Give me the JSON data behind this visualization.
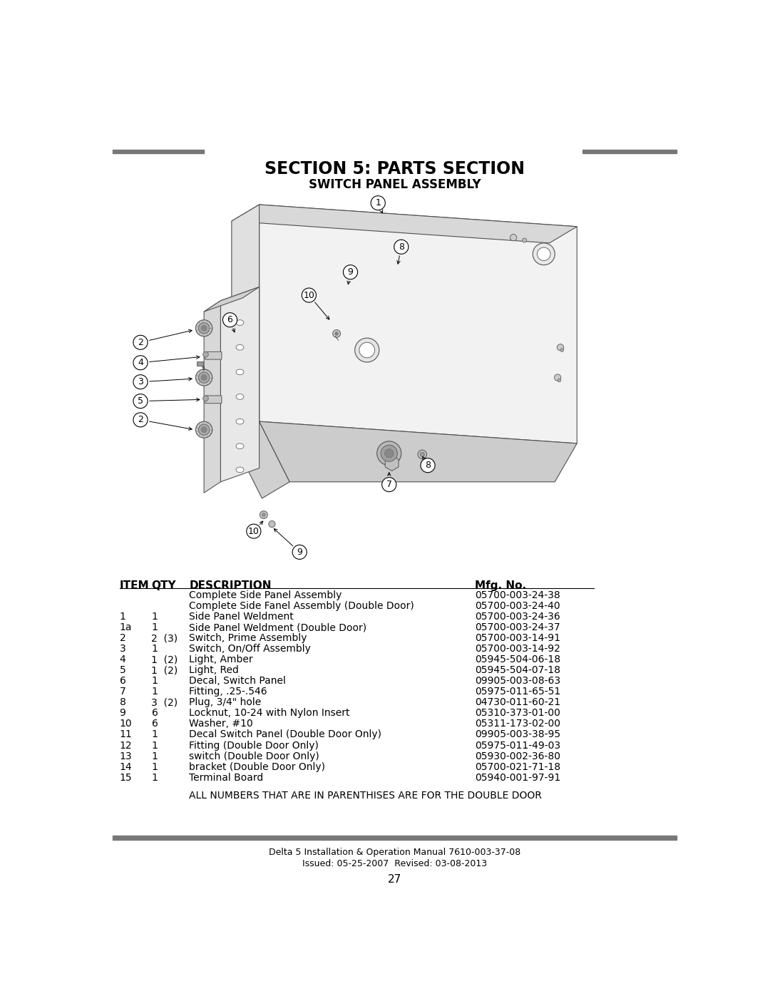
{
  "title1": "SECTION 5: PARTS SECTION",
  "title2": "SWITCH PANEL ASSEMBLY",
  "bg_color": "#ffffff",
  "header_bar_color": "#777777",
  "footer_bar_color": "#777777",
  "table_headers": [
    "ITEM",
    "QTY",
    "DESCRIPTION",
    "Mfg. No."
  ],
  "table_rows": [
    [
      "",
      "",
      "Complete Side Panel Assembly",
      "05700-003-24-38"
    ],
    [
      "",
      "",
      "Complete Side Fanel Assembly (Double Door)",
      "05700-003-24-40"
    ],
    [
      "1",
      "1",
      "Side Panel Weldment",
      "05700-003-24-36"
    ],
    [
      "1a",
      "1",
      "Side Panel Weldment (Double Door)",
      "05700-003-24-37"
    ],
    [
      "2",
      "2  (3)",
      "Switch, Prime Assembly",
      "05700-003-14-91"
    ],
    [
      "3",
      "1",
      "Switch, On/Off Assembly",
      "05700-003-14-92"
    ],
    [
      "4",
      "1  (2)",
      "Light, Amber",
      "05945-504-06-18"
    ],
    [
      "5",
      "1  (2)",
      "Light, Red",
      "05945-504-07-18"
    ],
    [
      "6",
      "1",
      "Decal, Switch Panel",
      "09905-003-08-63"
    ],
    [
      "7",
      "1",
      "Fitting, .25-.546",
      "05975-011-65-51"
    ],
    [
      "8",
      "3  (2)",
      "Plug, 3/4\" hole",
      "04730-011-60-21"
    ],
    [
      "9",
      "6",
      "Locknut, 10-24 with Nylon Insert",
      "05310-373-01-00"
    ],
    [
      "10",
      "6",
      "Washer, #10",
      "05311-173-02-00"
    ],
    [
      "11",
      "1",
      "Decal Switch Panel (Double Door Only)",
      "09905-003-38-95"
    ],
    [
      "12",
      "1",
      "Fitting (Double Door Only)",
      "05975-011-49-03"
    ],
    [
      "13",
      "1",
      "switch (Double Door Only)",
      "05930-002-36-80"
    ],
    [
      "14",
      "1",
      "bracket (Double Door Only)",
      "05700-021-71-18"
    ],
    [
      "15",
      "1",
      "Terminal Board",
      "05940-001-97-91"
    ]
  ],
  "note": "ALL NUMBERS THAT ARE IN PARENTHISES ARE FOR THE DOUBLE DOOR",
  "footer_line1": "Delta 5 Installation & Operation Manual 7610-003-37-08",
  "footer_line2": "Issued: 05-25-2007  Revised: 03-08-2013",
  "page_number": "27"
}
